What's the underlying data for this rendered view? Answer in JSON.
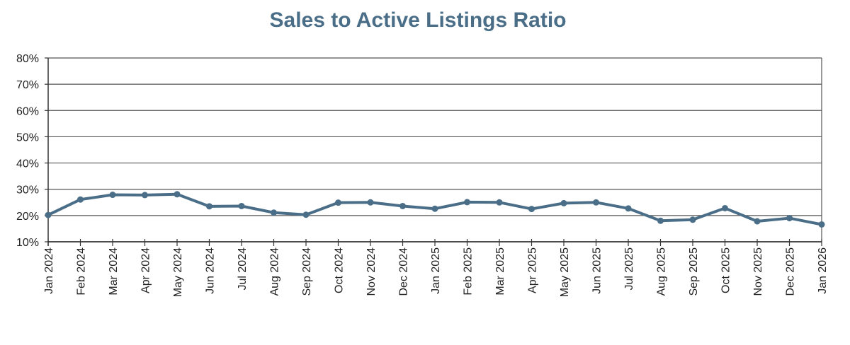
{
  "chart_data": {
    "type": "line",
    "title": "Sales to Active Listings Ratio",
    "xlabel": "",
    "ylabel": "",
    "ylim": [
      10,
      80
    ],
    "y_ticks": [
      "10%",
      "20%",
      "30%",
      "40%",
      "50%",
      "60%",
      "70%",
      "80%"
    ],
    "grid": true,
    "categories": [
      "Jan 2024",
      "Feb 2024",
      "Mar 2024",
      "Apr 2024",
      "May 2024",
      "Jun 2024",
      "Jul 2024",
      "Aug 2024",
      "Sep 2024",
      "Oct 2024",
      "Nov 2024",
      "Dec 2024",
      "Jan 2025",
      "Feb 2025",
      "Mar 2025",
      "Apr 2025",
      "May 2025",
      "Jun 2025",
      "Jul 2025",
      "Aug 2025",
      "Sep 2025",
      "Oct 2025",
      "Nov 2025",
      "Dec 2025",
      "Jan 2026"
    ],
    "series": [
      {
        "values": [
          20.2,
          26.1,
          27.9,
          27.8,
          28.1,
          23.5,
          23.6,
          21.1,
          20.3,
          24.9,
          25.0,
          23.6,
          22.6,
          25.1,
          25.0,
          22.5,
          24.7,
          25.0,
          22.7,
          18.0,
          18.4,
          22.8,
          17.8,
          19.0,
          16.6
        ],
        "color": "#4b6e88"
      }
    ]
  }
}
